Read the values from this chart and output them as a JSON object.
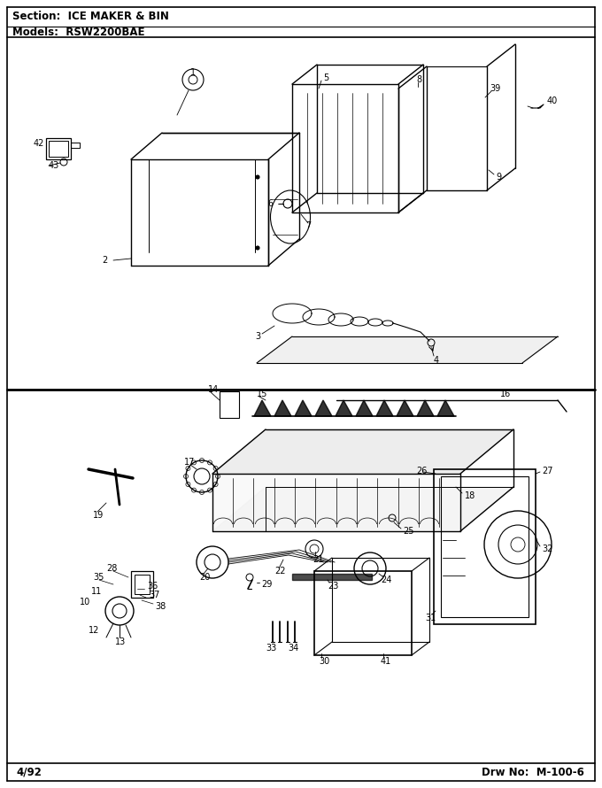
{
  "section_text": "Section:  ICE MAKER & BIN",
  "models_text": "Models:  RSW2200BAE",
  "footer_left": "4/92",
  "footer_right": "Drw No:  M-100-6",
  "bg_color": "#ffffff",
  "line_color": "#000000",
  "text_color": "#000000",
  "fig_width": 6.8,
  "fig_height": 8.9,
  "dpi": 100
}
